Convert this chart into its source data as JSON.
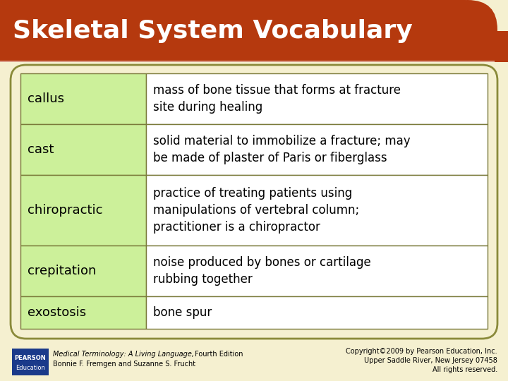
{
  "title": "Skeletal System Vocabulary",
  "title_bg_color": "#b5390e",
  "title_text_color": "#ffffff",
  "slide_bg_color": "#f5f0d0",
  "table_border_color": "#7a7a3a",
  "cell_left_bg": "#ccf09a",
  "cell_right_bg": "#ffffff",
  "card_border_color": "#8a8a3a",
  "rows": [
    {
      "term": "callus",
      "definition": "mass of bone tissue that forms at fracture\nsite during healing"
    },
    {
      "term": "cast",
      "definition": "solid material to immobilize a fracture; may\nbe made of plaster of Paris or fiberglass"
    },
    {
      "term": "chiropractic",
      "definition": "practice of treating patients using\nmanipulations of vertebral column;\npractitioner is a chiropractor"
    },
    {
      "term": "crepitation",
      "definition": "noise produced by bones or cartilage\nrubbing together"
    },
    {
      "term": "exostosis",
      "definition": "bone spur"
    }
  ],
  "footer_left_italic": "Medical Terminology: A Living Language,",
  "footer_left_normal": " Fourth Edition",
  "footer_left_line2": "Bonnie F. Fremgen and Suzanne S. Frucht",
  "footer_right_line1": "Copyright©2009 by Pearson Education, Inc.",
  "footer_right_line2": "Upper Saddle River, New Jersey 07458",
  "footer_right_line3": "All rights reserved.",
  "pearson_box_color": "#1a3a8a",
  "pearson_line1": "PEARSON",
  "pearson_line2": "Education"
}
